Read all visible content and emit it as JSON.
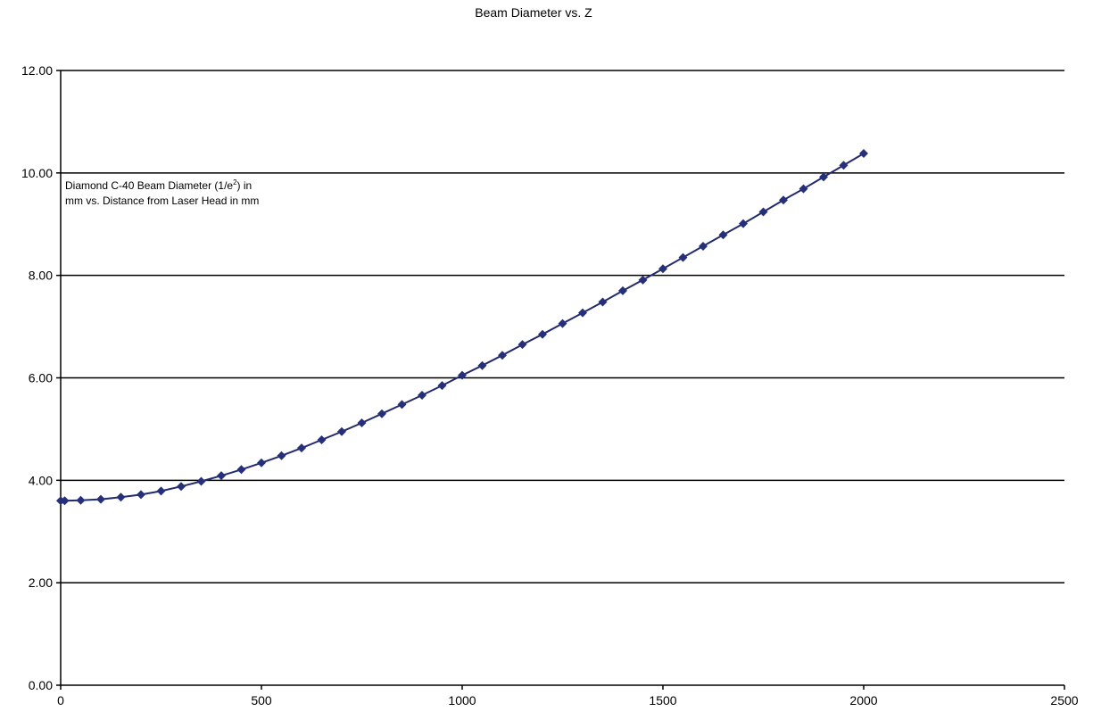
{
  "chart_data": {
    "type": "line",
    "title": "Beam Diameter vs. Z",
    "xlabel": "",
    "ylabel": "",
    "xlim": [
      0,
      2500
    ],
    "ylim": [
      0,
      12
    ],
    "x_ticks": [
      "0",
      "500",
      "1000",
      "1500",
      "2000",
      "2500"
    ],
    "y_ticks": [
      "0.00",
      "2.00",
      "4.00",
      "6.00",
      "8.00",
      "10.00",
      "12.00"
    ],
    "grid": "horizontal",
    "annotation": {
      "line1_pre": "Diamond C-40 Beam Diameter (1/e",
      "line1_sup": "2",
      "line1_post": ") in",
      "line2": "mm vs. Distance from Laser Head in mm"
    },
    "series": [
      {
        "color": "#26307a",
        "marker": "diamond",
        "x": [
          0,
          10,
          50,
          100,
          150,
          200,
          250,
          300,
          350,
          400,
          450,
          500,
          550,
          600,
          650,
          700,
          750,
          800,
          850,
          900,
          950,
          1000,
          1050,
          1100,
          1150,
          1200,
          1250,
          1300,
          1350,
          1400,
          1450,
          1500,
          1550,
          1600,
          1650,
          1700,
          1750,
          1800,
          1850,
          1900,
          1950,
          2000
        ],
        "y": [
          3.6,
          3.6,
          3.61,
          3.63,
          3.67,
          3.72,
          3.79,
          3.88,
          3.98,
          4.09,
          4.21,
          4.34,
          4.48,
          4.63,
          4.79,
          4.95,
          5.12,
          5.3,
          5.48,
          5.66,
          5.85,
          6.05,
          6.24,
          6.44,
          6.65,
          6.85,
          7.06,
          7.27,
          7.48,
          7.7,
          7.91,
          8.13,
          8.35,
          8.57,
          8.79,
          9.01,
          9.24,
          9.47,
          9.69,
          9.92,
          10.15,
          10.38
        ]
      }
    ]
  }
}
